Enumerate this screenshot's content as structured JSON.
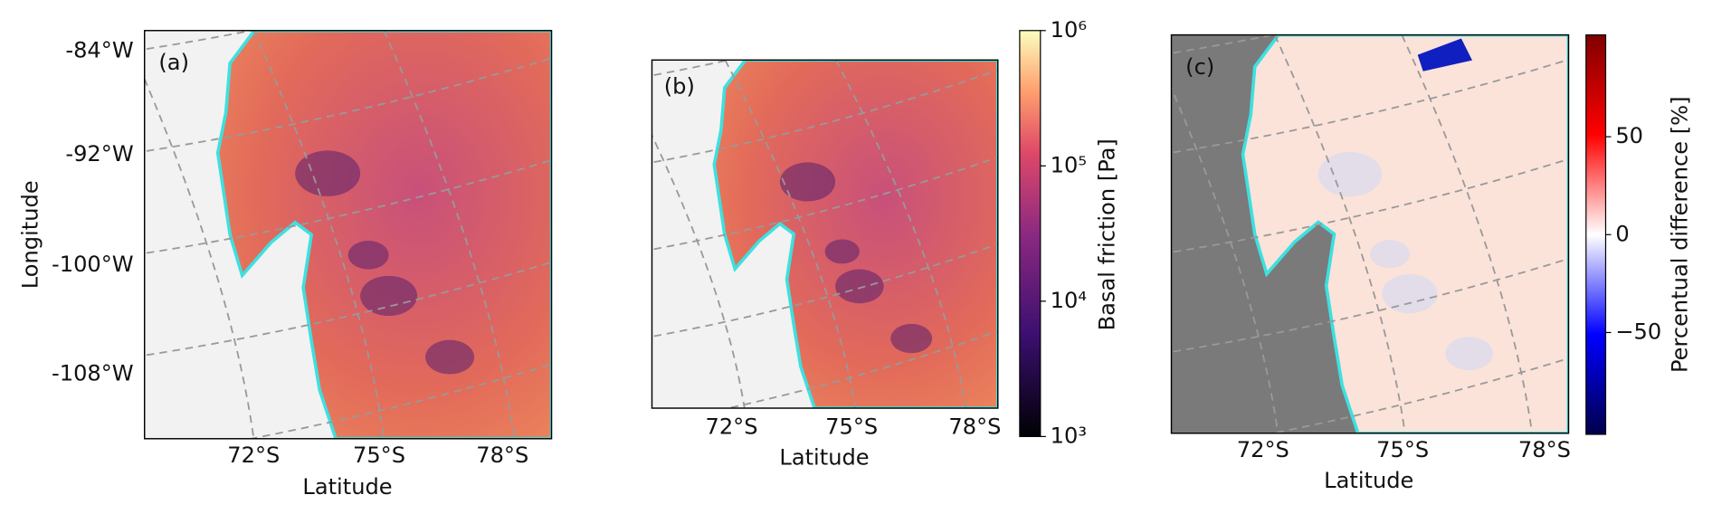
{
  "panels": [
    {
      "label": "(a)",
      "x_axis_title": "Latitude",
      "y_axis_title": "Longitude",
      "x_ticks": [
        "72°S",
        "75°S",
        "78°S"
      ],
      "y_ticks": [
        "-84°W",
        "-92°W",
        "-100°W",
        "-108°W"
      ]
    },
    {
      "label": "(b)",
      "x_axis_title": "Latitude",
      "x_ticks": [
        "72°S",
        "75°S",
        "78°S"
      ]
    },
    {
      "label": "(c)",
      "x_axis_title": "Latitude",
      "x_ticks": [
        "72°S",
        "75°S",
        "78°S"
      ]
    }
  ],
  "colorbars": [
    {
      "title": "Basal friction [Pa]",
      "scale": "log",
      "lim": [
        1000,
        1000000
      ],
      "ticks": [
        {
          "value": 1000,
          "label": "10³"
        },
        {
          "value": 10000,
          "label": "10⁴"
        },
        {
          "value": 100000,
          "label": "10⁵"
        },
        {
          "value": 1000000,
          "label": "10⁶"
        }
      ]
    },
    {
      "title": "Percentual difference [%]",
      "scale": "linear",
      "lim": [
        -102,
        102
      ],
      "ticks": [
        {
          "value": -50,
          "label": "−50"
        },
        0,
        50
      ]
    }
  ]
}
